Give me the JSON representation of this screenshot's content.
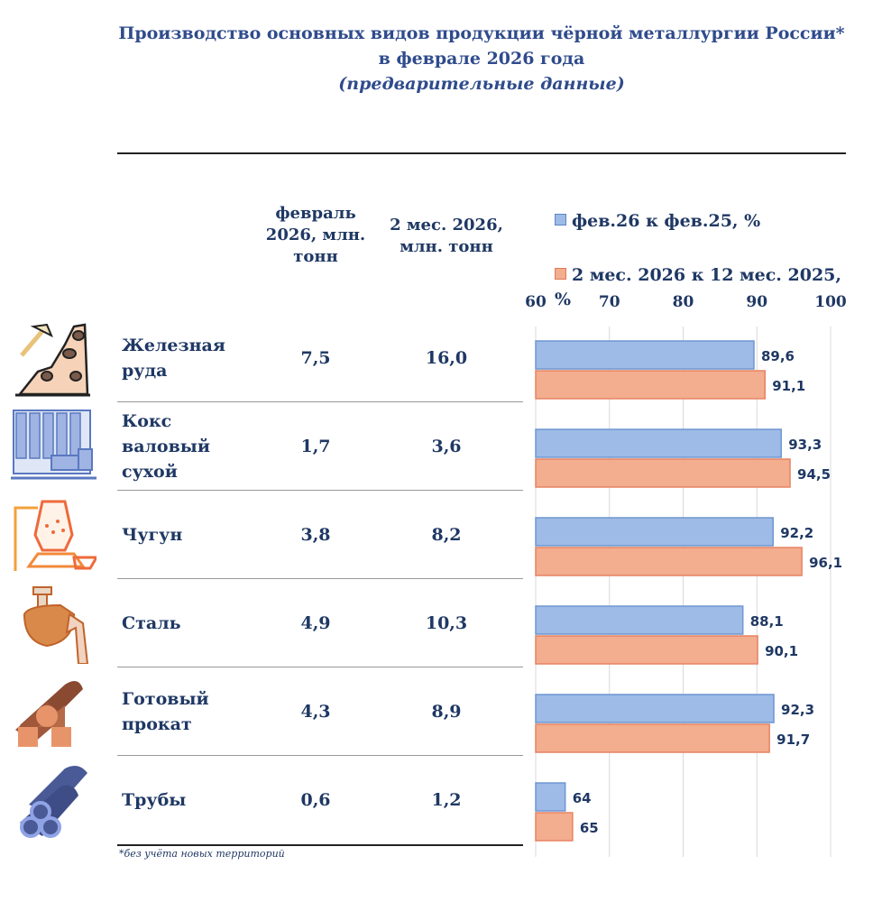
{
  "title": {
    "line1": "Производство основных видов продукции чёрной металлургии России*",
    "line2": "в феврале 2026 года",
    "line3": "(предварительные данные)"
  },
  "columns": {
    "feb": "февраль 2026, млн. тонн",
    "two_months": "2 мес. 2026, млн. тонн"
  },
  "footnote": "*без учёта новых территорий",
  "chart_data": {
    "type": "bar",
    "orientation": "horizontal",
    "categories": [
      "Железная руда",
      "Кокс валовый сухой",
      "Чугун",
      "Сталь",
      "Готовый прокат",
      "Трубы"
    ],
    "series": [
      {
        "name": "фев.26 к фев.25, %",
        "color": "#9dbbe6",
        "values": [
          89.6,
          93.3,
          92.2,
          88.1,
          92.3,
          64
        ]
      },
      {
        "name": "2 мес. 2026 к 12 мес. 2025, %",
        "color": "#f3ad8f",
        "values": [
          91.1,
          94.5,
          96.1,
          90.1,
          91.7,
          65
        ]
      }
    ],
    "labels": [
      [
        "89,6",
        "93,3",
        "92,2",
        "88,1",
        "92,3",
        "64"
      ],
      [
        "91,1",
        "94,5",
        "96,1",
        "90,1",
        "91,7",
        "65"
      ]
    ],
    "xlim": [
      60,
      100
    ],
    "ticks": [
      "60",
      "70",
      "80",
      "90",
      "100"
    ],
    "grid": true,
    "legend": "top"
  },
  "rows": [
    {
      "label": "Железная руда",
      "feb": "7,5",
      "two": "16,0",
      "icon": "mining-icon"
    },
    {
      "label": "Кокс валовый сухой",
      "feb": "1,7",
      "two": "3,6",
      "icon": "coke-oven-icon"
    },
    {
      "label": "Чугун",
      "feb": "3,8",
      "two": "8,2",
      "icon": "blast-furnace-icon"
    },
    {
      "label": "Сталь",
      "feb": "4,9",
      "two": "10,3",
      "icon": "ladle-icon"
    },
    {
      "label": "Готовый прокат",
      "feb": "4,3",
      "two": "8,9",
      "icon": "rolled-metal-icon"
    },
    {
      "label": "Трубы",
      "feb": "0,6",
      "two": "1,2",
      "icon": "pipes-icon"
    }
  ]
}
